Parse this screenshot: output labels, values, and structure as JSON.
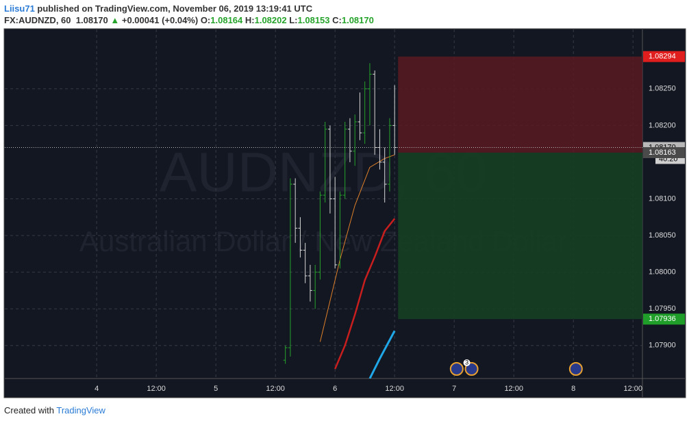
{
  "header": {
    "author": "Liisu71",
    "published": "published on TradingView.com, November 06, 2019 13:19:41 UTC",
    "symbol": "FX:AUDNZD, 60",
    "last": "1.08170",
    "arrow": "▲",
    "change": "+0.00041 (+0.04%)",
    "o_label": "O:",
    "o": "1.08164",
    "h_label": "H:",
    "h": "1.08202",
    "l_label": "L:",
    "l": "1.08153",
    "c_label": "C:",
    "c": "1.08170"
  },
  "footer": {
    "created": "Created with",
    "brand": "TradingView"
  },
  "chart_data": {
    "type": "ohlc",
    "watermark": "AUDNZD, 60",
    "watermark_sub": "Australian Dollar / New Zealand Dollar",
    "up_color": "#26a32b",
    "down_color": "#d8d8d8",
    "grid": true,
    "xlim": [
      -18.5,
      109.9
    ],
    "ylim": [
      1.07855,
      1.08331
    ],
    "xticks": [
      {
        "value": 0,
        "label": "4"
      },
      {
        "value": 12,
        "label": "12:00"
      },
      {
        "value": 24,
        "label": "5"
      },
      {
        "value": 36,
        "label": "12:00"
      },
      {
        "value": 48,
        "label": "6"
      },
      {
        "value": 60,
        "label": "12:00"
      },
      {
        "value": 72,
        "label": "7"
      },
      {
        "value": 84,
        "label": "12:00"
      },
      {
        "value": 96,
        "label": "8"
      },
      {
        "value": 108,
        "label": "12:00"
      }
    ],
    "yticks": [
      {
        "value": 1.0825,
        "label": "1.08250"
      },
      {
        "value": 1.082,
        "label": "1.08200"
      },
      {
        "value": 1.081,
        "label": "1.08100"
      },
      {
        "value": 1.0805,
        "label": "1.08050"
      },
      {
        "value": 1.08,
        "label": "1.08000"
      },
      {
        "value": 1.0795,
        "label": "1.07950"
      },
      {
        "value": 1.079,
        "label": "1.07900"
      }
    ],
    "x": [
      38,
      39,
      40,
      41,
      42,
      43,
      44,
      45,
      46,
      47,
      48,
      49,
      50,
      51,
      52,
      53,
      54,
      55,
      56,
      57,
      58,
      59,
      60
    ],
    "open": [
      1.0788,
      1.07897,
      1.0812,
      1.0806,
      1.0803,
      1.07995,
      1.07975,
      1.08,
      1.08105,
      1.08195,
      1.081,
      1.0801,
      1.08105,
      1.08195,
      1.08165,
      1.08205,
      1.0819,
      1.0825,
      1.0827,
      1.0817,
      1.0815,
      1.0812,
      1.082
    ],
    "high": [
      1.079,
      1.08128,
      1.08128,
      1.08075,
      1.0804,
      1.0801,
      1.0801,
      1.0811,
      1.08205,
      1.082,
      1.0813,
      1.0811,
      1.08205,
      1.0821,
      1.08215,
      1.08245,
      1.0826,
      1.08285,
      1.08275,
      1.08195,
      1.0817,
      1.0821,
      1.08255
    ],
    "low": [
      1.07875,
      1.07885,
      1.0804,
      1.0802,
      1.07985,
      1.0796,
      1.0795,
      1.0799,
      1.08095,
      1.0808,
      1.08005,
      1.08005,
      1.081,
      1.0815,
      1.08145,
      1.0818,
      1.08175,
      1.082,
      1.0816,
      1.0814,
      1.08095,
      1.0811,
      1.0816
    ],
    "close": [
      1.07897,
      1.0812,
      1.0806,
      1.0803,
      1.07995,
      1.07975,
      1.08,
      1.08105,
      1.08195,
      1.081,
      1.0801,
      1.08105,
      1.08195,
      1.08165,
      1.08205,
      1.0819,
      1.0825,
      1.0827,
      1.0817,
      1.0815,
      1.0812,
      1.082,
      1.0817
    ],
    "lines": [
      {
        "color": "#e0802a",
        "x": [
          45,
          49,
          52,
          55,
          58,
          60
        ],
        "values": [
          1.07905,
          1.08017,
          1.08091,
          1.08143,
          1.08155,
          1.0816
        ]
      },
      {
        "color": "#c81e1e",
        "x": [
          48,
          50,
          52,
          54,
          56,
          58,
          60
        ],
        "values": [
          1.07868,
          1.079,
          1.07942,
          1.07989,
          1.08021,
          1.08056,
          1.08073
        ]
      },
      {
        "color": "#1fa7e8",
        "x": [
          55,
          57,
          60
        ],
        "values": [
          1.07855,
          1.07882,
          1.0792
        ]
      }
    ],
    "last_price": {
      "value": 1.0817,
      "label": "1.08170",
      "countdown": "40:20"
    },
    "position": {
      "start": 60.7,
      "end": 109.9,
      "stop": {
        "value": 1.08294,
        "label": "1.08294"
      },
      "entry": {
        "value": 1.08163,
        "label": "1.08163"
      },
      "target": {
        "value": 1.07936,
        "label": "1.07936"
      }
    },
    "events": [
      {
        "x": 72.5
      },
      {
        "x": 75.5,
        "count": "3"
      },
      {
        "x": 96.5
      }
    ]
  }
}
